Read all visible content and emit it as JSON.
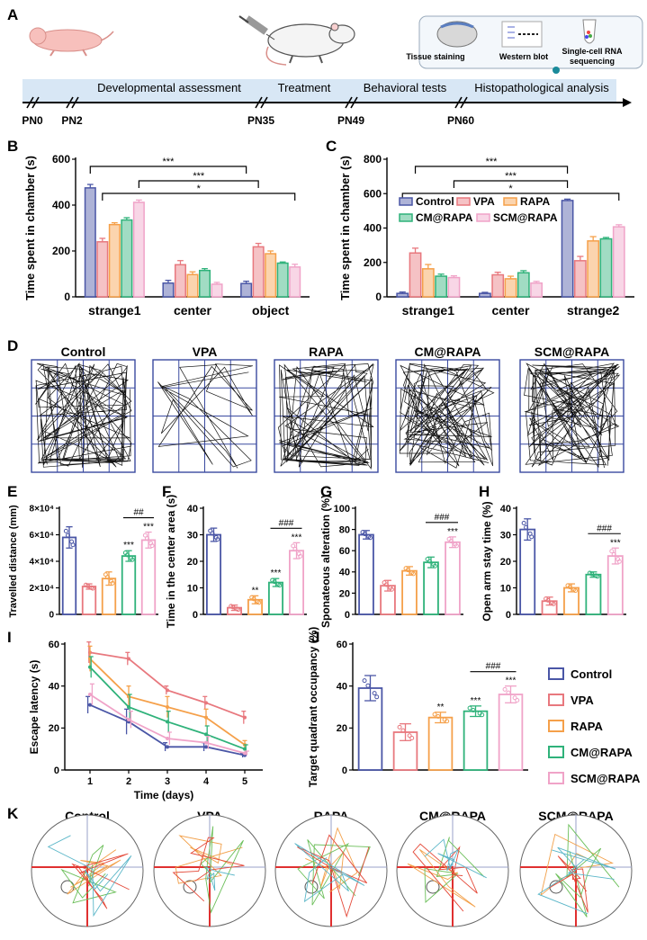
{
  "colors": {
    "control": "#4a56a6",
    "vpa": "#e8787e",
    "rapa": "#f5a04a",
    "cm": "#2fb27a",
    "scm": "#f0a3c8",
    "axis": "#000000",
    "grid_box": "#3a4aa0",
    "timeline_band": "#cfe2f3",
    "target_red": "#e03030",
    "path_orange": "#f2a04a",
    "path_green": "#6cbf5a",
    "path_red": "#e44a3a",
    "path_teal": "#5ab6c8"
  },
  "panels": {
    "A": "A",
    "B": "B",
    "C": "C",
    "D": "D",
    "E": "E",
    "F": "F",
    "G": "G",
    "H": "H",
    "I": "I",
    "J": "J",
    "K": "K"
  },
  "timeline": {
    "phases": [
      "Developmental assessment",
      "Treatment",
      "Behavioral tests",
      "Histopathological analysis"
    ],
    "days": [
      "PN0",
      "PN2",
      "PN35",
      "PN49",
      "PN60"
    ],
    "analysis": [
      "Tissue staining",
      "Western blot",
      "Single-cell RNA",
      "sequencing"
    ]
  },
  "groups": [
    "Control",
    "VPA",
    "RAPA",
    "CM@RAPA",
    "SCM@RAPA"
  ],
  "arena_labels": [
    "Control",
    "VPA",
    "RAPA",
    "CM@RAPA",
    "SCM@RAPA"
  ],
  "water_maze_labels": [
    "Control",
    "VPA",
    "RAPA",
    "CM@RAPA",
    "SCM@RAPA"
  ],
  "legend_labels": [
    "Control",
    "VPA",
    "RAPA",
    "CM@RAPA",
    "SCM@RAPA"
  ],
  "chart_data": [
    {
      "id": "B",
      "type": "bar",
      "ylabel": "Time spent in chamber (s)",
      "categories": [
        "strange1",
        "center",
        "object"
      ],
      "yticks": [
        "0",
        "200",
        "400",
        "600"
      ],
      "ylim": [
        0,
        600
      ],
      "series": [
        {
          "name": "Control",
          "values": [
            475,
            60,
            58
          ],
          "errors": [
            15,
            12,
            10
          ]
        },
        {
          "name": "VPA",
          "values": [
            240,
            140,
            218
          ],
          "errors": [
            15,
            18,
            15
          ]
        },
        {
          "name": "RAPA",
          "values": [
            315,
            97,
            188
          ],
          "errors": [
            8,
            12,
            12
          ]
        },
        {
          "name": "CM@RAPA",
          "values": [
            335,
            115,
            147
          ],
          "errors": [
            10,
            8,
            5
          ]
        },
        {
          "name": "SCM@RAPA",
          "values": [
            412,
            55,
            130
          ],
          "errors": [
            10,
            8,
            12
          ]
        }
      ],
      "annotations": [
        "***",
        "***",
        "*"
      ]
    },
    {
      "id": "C",
      "type": "bar",
      "ylabel": "Time spent in chamber (s)",
      "categories": [
        "strange1",
        "center",
        "strange2"
      ],
      "yticks": [
        "0",
        "200",
        "400",
        "600",
        "800"
      ],
      "ylim": [
        0,
        800
      ],
      "series": [
        {
          "name": "Control",
          "values": [
            20,
            20,
            560
          ],
          "errors": [
            8,
            6,
            8
          ]
        },
        {
          "name": "VPA",
          "values": [
            255,
            128,
            210
          ],
          "errors": [
            28,
            15,
            25
          ]
        },
        {
          "name": "RAPA",
          "values": [
            163,
            105,
            325
          ],
          "errors": [
            25,
            15,
            25
          ]
        },
        {
          "name": "CM@RAPA",
          "values": [
            120,
            140,
            337
          ],
          "errors": [
            12,
            12,
            8
          ]
        },
        {
          "name": "SCM@RAPA",
          "values": [
            112,
            80,
            407
          ],
          "errors": [
            10,
            10,
            12
          ]
        }
      ],
      "annotations": [
        "***",
        "***",
        "*"
      ],
      "legend": [
        "Control",
        "VPA",
        "RAPA",
        "CM@RAPA",
        "SCM@RAPA"
      ]
    },
    {
      "id": "E",
      "type": "bar",
      "ylabel": "Travelled distance (mm)",
      "yticks": [
        "0",
        "2×10⁴",
        "4×10⁴",
        "6×10⁴",
        "8×10⁴"
      ],
      "ylim": [
        0,
        80000
      ],
      "categories": [
        "Control",
        "VPA",
        "RAPA",
        "CM@RAPA",
        "SCM@RAPA"
      ],
      "values": [
        58000,
        21000,
        27000,
        44000,
        56000
      ],
      "errors": [
        8000,
        2000,
        5000,
        4000,
        6000
      ],
      "stars": [
        "",
        "",
        "",
        "***",
        "***"
      ],
      "hash": "##"
    },
    {
      "id": "F",
      "type": "bar",
      "ylabel": "Time in the center area (s)",
      "yticks": [
        "0",
        "10",
        "20",
        "30",
        "40"
      ],
      "ylim": [
        0,
        40
      ],
      "categories": [
        "Control",
        "VPA",
        "RAPA",
        "CM@RAPA",
        "SCM@RAPA"
      ],
      "values": [
        30,
        2.5,
        5.5,
        12,
        24
      ],
      "errors": [
        2.5,
        1,
        1.5,
        1.5,
        3
      ],
      "stars": [
        "",
        "",
        "**",
        "***",
        "***"
      ],
      "hash": "###"
    },
    {
      "id": "G",
      "type": "bar",
      "ylabel": "Sponateous alteration (%)",
      "yticks": [
        "0",
        "20",
        "40",
        "60",
        "80",
        "100"
      ],
      "ylim": [
        0,
        100
      ],
      "categories": [
        "Control",
        "VPA",
        "RAPA",
        "CM@RAPA",
        "SCM@RAPA"
      ],
      "values": [
        75,
        27,
        41,
        49,
        68
      ],
      "errors": [
        4,
        5,
        4,
        5,
        5
      ],
      "stars": [
        "",
        "",
        "",
        "",
        "***"
      ],
      "hash": "###"
    },
    {
      "id": "H",
      "type": "bar",
      "ylabel": "Open arm stay time (%)",
      "yticks": [
        "0",
        "10",
        "20",
        "30",
        "40"
      ],
      "ylim": [
        0,
        40
      ],
      "categories": [
        "Control",
        "VPA",
        "RAPA",
        "CM@RAPA",
        "SCM@RAPA"
      ],
      "values": [
        32,
        5,
        10,
        15,
        22
      ],
      "errors": [
        4,
        1.5,
        1.5,
        1,
        3
      ],
      "stars": [
        "",
        "",
        "",
        "",
        "***"
      ],
      "hash": "###"
    },
    {
      "id": "I",
      "type": "line",
      "ylabel": "Escape latency (s)",
      "xlabel": "Time (days)",
      "x": [
        1,
        2,
        3,
        4,
        5
      ],
      "xticks": [
        "1",
        "2",
        "3",
        "4",
        "5"
      ],
      "yticks": [
        "0",
        "20",
        "40",
        "60"
      ],
      "ylim": [
        0,
        60
      ],
      "series": [
        {
          "name": "Control",
          "values": [
            31,
            23,
            11,
            11,
            7
          ],
          "errors": [
            4,
            6,
            2,
            2,
            1
          ]
        },
        {
          "name": "VPA",
          "values": [
            56,
            53,
            38,
            32,
            25
          ],
          "errors": [
            5,
            3,
            2,
            3,
            3
          ]
        },
        {
          "name": "RAPA",
          "values": [
            53,
            35,
            30,
            25,
            12
          ],
          "errors": [
            6,
            5,
            5,
            4,
            2
          ]
        },
        {
          "name": "CM@RAPA",
          "values": [
            49,
            30,
            23,
            17,
            10
          ],
          "errors": [
            5,
            6,
            5,
            4,
            2
          ]
        },
        {
          "name": "SCM@RAPA",
          "values": [
            36,
            24,
            15,
            13,
            8
          ],
          "errors": [
            5,
            4,
            3,
            3,
            1
          ]
        }
      ]
    },
    {
      "id": "J",
      "type": "bar",
      "ylabel": "Target quadrant occupancy (%)",
      "yticks": [
        "0",
        "20",
        "40",
        "60"
      ],
      "ylim": [
        0,
        60
      ],
      "categories": [
        "Control",
        "VPA",
        "RAPA",
        "CM@RAPA",
        "SCM@RAPA"
      ],
      "values": [
        39,
        18,
        25,
        28,
        36
      ],
      "errors": [
        6,
        4,
        2.5,
        2.5,
        4
      ],
      "stars": [
        "",
        "",
        "**",
        "***",
        "***"
      ],
      "hash": "###"
    }
  ]
}
